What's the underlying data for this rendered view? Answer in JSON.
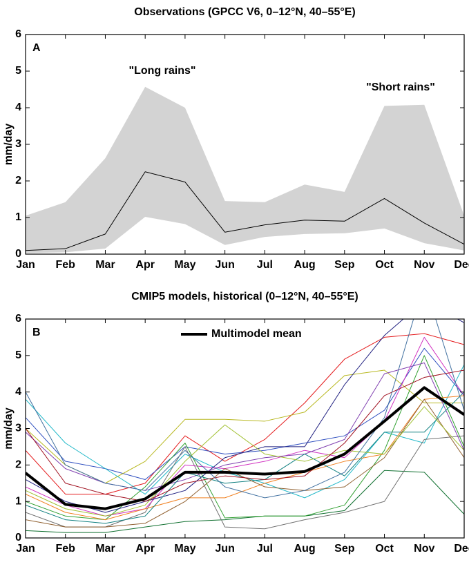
{
  "chart_data": [
    {
      "type": "line",
      "title": "Observations (GPCC V6, 0–12°N, 40–55°E)",
      "ylabel": "mm/day",
      "panel_label": "A",
      "categories": [
        "Jan",
        "Feb",
        "Mar",
        "Apr",
        "May",
        "Jun",
        "Jul",
        "Aug",
        "Sep",
        "Oct",
        "Nov",
        "Dec"
      ],
      "ylim": [
        0,
        6
      ],
      "yticks": [
        0,
        1,
        2,
        3,
        4,
        5,
        6
      ],
      "band": {
        "color": "#d3d3d3",
        "lower": [
          0.03,
          0.05,
          0.15,
          1.02,
          0.82,
          0.25,
          0.47,
          0.55,
          0.57,
          0.7,
          0.3,
          0.1
        ],
        "upper": [
          1.05,
          1.42,
          2.62,
          4.57,
          4.0,
          1.45,
          1.42,
          1.9,
          1.7,
          4.05,
          4.08,
          1.05
        ]
      },
      "series": [
        {
          "color": "#000000",
          "values": [
            0.1,
            0.15,
            0.55,
            2.25,
            1.97,
            0.6,
            0.8,
            0.93,
            0.9,
            1.52,
            0.85,
            0.27
          ]
        }
      ],
      "annotations": [
        "\"Long rains\"",
        "\"Short rains\""
      ]
    },
    {
      "type": "line",
      "title": "CMIP5 models, historical (0–12°N, 40–55°E)",
      "ylabel": "mm/day",
      "panel_label": "B",
      "categories": [
        "Jan",
        "Feb",
        "Mar",
        "Apr",
        "May",
        "Jun",
        "Jul",
        "Aug",
        "Sep",
        "Oct",
        "Nov",
        "Dec"
      ],
      "ylim": [
        0,
        6
      ],
      "yticks": [
        0,
        1,
        2,
        3,
        4,
        5,
        6
      ],
      "legend": "upper center",
      "series": [
        {
          "color": "#e41a1c",
          "values": [
            2.4,
            1.2,
            1.2,
            1.5,
            2.8,
            2.1,
            2.7,
            3.7,
            4.9,
            5.5,
            5.6,
            5.3
          ]
        },
        {
          "color": "#3050c0",
          "values": [
            3.3,
            2.1,
            1.9,
            1.6,
            2.5,
            2.3,
            2.4,
            2.6,
            2.8,
            3.5,
            5.2,
            3.9
          ]
        },
        {
          "color": "#b8b820",
          "values": [
            3.0,
            2.0,
            1.5,
            2.1,
            3.25,
            3.25,
            3.2,
            3.45,
            4.45,
            4.6,
            3.7,
            3.7
          ]
        },
        {
          "color": "#20b8c8",
          "values": [
            3.8,
            2.6,
            1.9,
            1.2,
            2.3,
            1.8,
            1.5,
            1.1,
            1.6,
            2.9,
            2.6,
            4.75
          ]
        },
        {
          "color": "#107030",
          "values": [
            0.2,
            0.15,
            0.15,
            0.3,
            0.45,
            0.5,
            0.6,
            0.6,
            0.75,
            1.85,
            1.8,
            0.65
          ]
        },
        {
          "color": "#707070",
          "values": [
            0.7,
            0.3,
            0.3,
            0.7,
            2.5,
            0.3,
            0.25,
            0.5,
            0.7,
            1.0,
            2.7,
            2.8
          ]
        },
        {
          "color": "#d030c0",
          "values": [
            1.4,
            0.9,
            0.6,
            0.8,
            2.0,
            1.9,
            2.1,
            2.4,
            2.2,
            3.2,
            5.5,
            3.9
          ]
        },
        {
          "color": "#30a030",
          "values": [
            1.0,
            0.6,
            0.5,
            1.4,
            2.6,
            0.55,
            0.6,
            0.6,
            0.9,
            2.4,
            5.0,
            2.5
          ]
        },
        {
          "color": "#202080",
          "values": [
            1.6,
            1.0,
            0.7,
            1.0,
            1.3,
            2.2,
            2.5,
            2.5,
            4.2,
            5.55,
            6.5,
            5.9
          ]
        },
        {
          "color": "#f08020",
          "values": [
            1.2,
            0.7,
            0.5,
            0.8,
            1.1,
            1.1,
            1.5,
            1.8,
            2.1,
            2.3,
            3.8,
            3.9
          ]
        },
        {
          "color": "#8040b0",
          "values": [
            2.9,
            1.9,
            1.5,
            1.3,
            1.6,
            2.0,
            2.2,
            2.3,
            2.7,
            4.5,
            4.8,
            2.4
          ]
        },
        {
          "color": "#108080",
          "values": [
            0.9,
            0.5,
            0.4,
            0.6,
            1.8,
            1.5,
            1.6,
            2.3,
            1.7,
            2.9,
            2.9,
            4.0
          ]
        },
        {
          "color": "#906030",
          "values": [
            0.5,
            0.3,
            0.3,
            0.4,
            1.0,
            1.9,
            1.4,
            1.3,
            1.4,
            2.2,
            3.8,
            2.2
          ]
        },
        {
          "color": "#a0c030",
          "values": [
            1.3,
            0.8,
            0.6,
            0.9,
            2.1,
            3.1,
            2.3,
            2.1,
            2.4,
            2.3,
            3.6,
            2.4
          ]
        },
        {
          "color": "#a01020",
          "values": [
            3.0,
            1.5,
            1.2,
            1.0,
            1.5,
            1.7,
            1.6,
            1.7,
            2.6,
            3.9,
            4.4,
            4.6
          ]
        },
        {
          "color": "#4070a0",
          "values": [
            4.0,
            2.0,
            1.5,
            1.3,
            2.4,
            1.4,
            1.1,
            1.3,
            1.8,
            3.3,
            7.0,
            3.5
          ]
        },
        {
          "name": "Multimodel mean",
          "color": "#000000",
          "width": 4,
          "values": [
            1.78,
            0.92,
            0.8,
            1.07,
            1.8,
            1.8,
            1.75,
            1.82,
            2.3,
            3.2,
            4.12,
            3.38
          ]
        }
      ]
    }
  ]
}
